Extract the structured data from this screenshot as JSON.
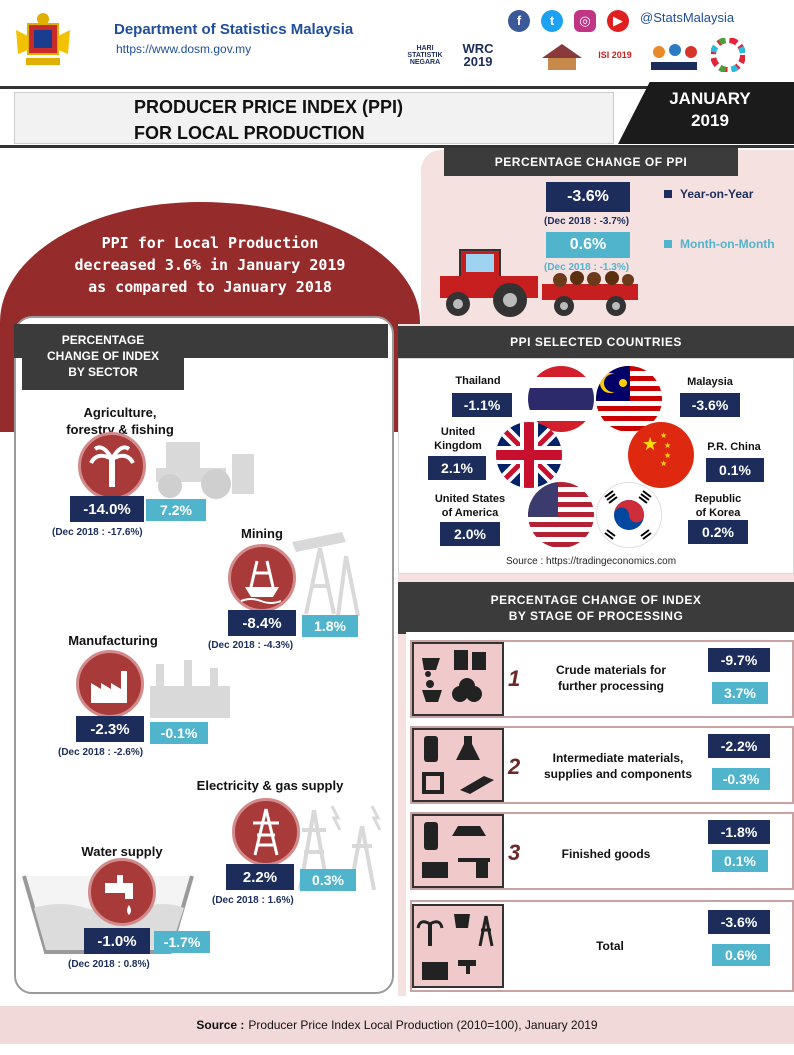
{
  "header": {
    "department": "Department of Statistics Malaysia",
    "url": "https://www.dosm.gov.my",
    "social_handle": "@StatsMalaysia",
    "logos": [
      "HARI STATISTIK NEGARA",
      "WRC 2019",
      "ISI 2019"
    ]
  },
  "title": {
    "line1": "PRODUCER PRICE INDEX (PPI)",
    "line2": "FOR LOCAL PRODUCTION",
    "month": "JANUARY",
    "year": "2019"
  },
  "ppi_change": {
    "heading": "PERCENTAGE CHANGE OF PPI",
    "yoy_value": "-3.6%",
    "yoy_note": "(Dec 2018 : -3.7%)",
    "yoy_label": "Year-on-Year",
    "mom_value": "0.6%",
    "mom_note": "(Dec 2018 : -1.3%)",
    "mom_label": "Month-on-Month"
  },
  "summary": {
    "line1": "PPI for Local Production",
    "line2": "decreased 3.6% in January 2019",
    "line3": "as compared to January 2018"
  },
  "sector": {
    "heading_1": "PERCENTAGE",
    "heading_2": "CHANGE OF INDEX",
    "heading_3": "BY SECTOR",
    "items": [
      {
        "name_1": "Agriculture,",
        "name_2": "forestry & fishing",
        "yoy": "-14.0%",
        "mom": "7.2%",
        "note": "(Dec 2018 : -17.6%)"
      },
      {
        "name_1": "Mining",
        "name_2": "",
        "yoy": "-8.4%",
        "mom": "1.8%",
        "note": "(Dec 2018 : -4.3%)"
      },
      {
        "name_1": "Manufacturing",
        "name_2": "",
        "yoy": "-2.3%",
        "mom": "-0.1%",
        "note": "(Dec 2018 : -2.6%)"
      },
      {
        "name_1": "Electricity & gas supply",
        "name_2": "",
        "yoy": "2.2%",
        "mom": "0.3%",
        "note": "(Dec 2018 : 1.6%)"
      },
      {
        "name_1": "Water supply",
        "name_2": "",
        "yoy": "-1.0%",
        "mom": "-1.7%",
        "note": "(Dec 2018 : 0.8%)"
      }
    ]
  },
  "countries": {
    "heading": "PPI SELECTED COUNTRIES",
    "source": "Source : https://tradingeconomics.com",
    "items": [
      {
        "name_1": "Thailand",
        "name_2": "",
        "value": "-1.1%"
      },
      {
        "name_1": "Malaysia",
        "name_2": "",
        "value": "-3.6%"
      },
      {
        "name_1": "United",
        "name_2": "Kingdom",
        "value": "2.1%"
      },
      {
        "name_1": "P.R. China",
        "name_2": "",
        "value": "0.1%"
      },
      {
        "name_1": "United States",
        "name_2": "of America",
        "value": "2.0%"
      },
      {
        "name_1": "Republic",
        "name_2": "of Korea",
        "value": "0.2%"
      }
    ]
  },
  "stage": {
    "heading_1": "PERCENTAGE CHANGE OF INDEX",
    "heading_2": "BY STAGE OF PROCESSING",
    "items": [
      {
        "num": "1",
        "label_1": "Crude materials for",
        "label_2": "further processing",
        "yoy": "-9.7%",
        "mom": "3.7%"
      },
      {
        "num": "2",
        "label_1": "Intermediate materials,",
        "label_2": "supplies and components",
        "yoy": "-2.2%",
        "mom": "-0.3%"
      },
      {
        "num": "3",
        "label_1": "Finished goods",
        "label_2": "",
        "yoy": "-1.8%",
        "mom": "0.1%"
      },
      {
        "num": "",
        "label_1": "Total",
        "label_2": "",
        "yoy": "-3.6%",
        "mom": "0.6%"
      }
    ]
  },
  "footer": {
    "source_label": "Source :",
    "source_text": "Producer Price Index Local Production (2010=100),  January 2019"
  },
  "colors": {
    "navy": "#1c2d5c",
    "teal": "#4fb4cc",
    "maroon": "#962b2b",
    "pink": "#f6e1e1"
  }
}
